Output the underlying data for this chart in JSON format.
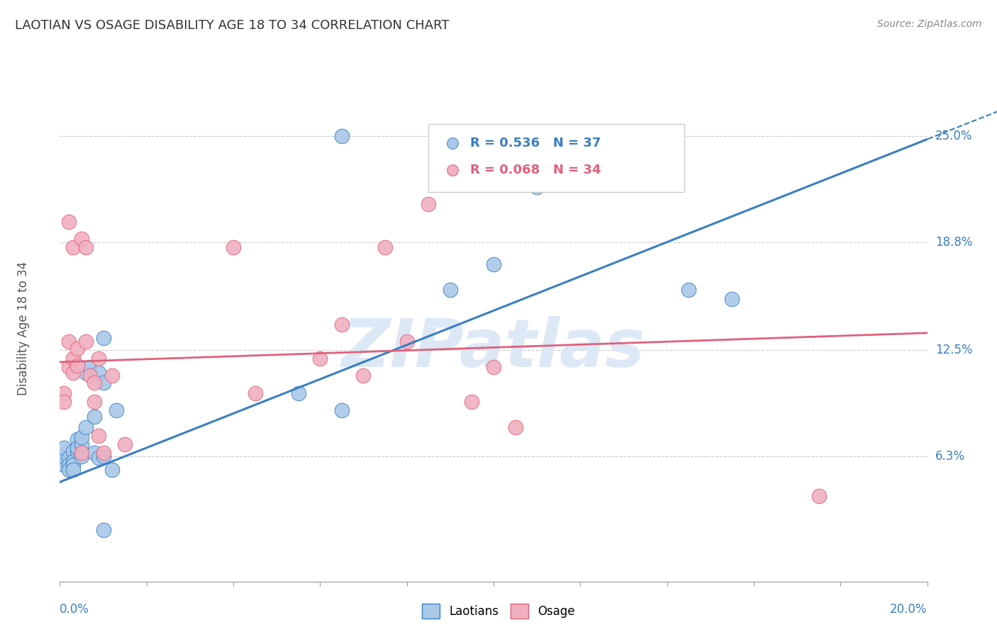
{
  "title": "LAOTIAN VS OSAGE DISABILITY AGE 18 TO 34 CORRELATION CHART",
  "source": "Source: ZipAtlas.com",
  "ylabel": "Disability Age 18 to 34",
  "xlim": [
    0.0,
    0.2
  ],
  "ylim": [
    -0.01,
    0.285
  ],
  "yticks": [
    0.063,
    0.125,
    0.188,
    0.25
  ],
  "ytick_labels": [
    "6.3%",
    "12.5%",
    "18.8%",
    "25.0%"
  ],
  "legend_blue_r": "R = 0.536",
  "legend_blue_n": "N = 37",
  "legend_pink_r": "R = 0.068",
  "legend_pink_n": "N = 34",
  "blue_color": "#aac8e8",
  "pink_color": "#f0b0c0",
  "blue_line_color": "#3a7fc1",
  "pink_line_color": "#e0607a",
  "watermark": "ZIPatlas",
  "watermark_color": "#dce8f5",
  "blue_line_x0": 0.0,
  "blue_line_y0": 0.048,
  "blue_line_x1": 0.2,
  "blue_line_y1": 0.248,
  "pink_line_x0": 0.0,
  "pink_line_y0": 0.118,
  "pink_line_x1": 0.2,
  "pink_line_y1": 0.135,
  "blue_x": [
    0.001,
    0.001,
    0.001,
    0.002,
    0.002,
    0.002,
    0.003,
    0.003,
    0.003,
    0.003,
    0.004,
    0.004,
    0.004,
    0.005,
    0.005,
    0.005,
    0.006,
    0.006,
    0.007,
    0.008,
    0.008,
    0.009,
    0.009,
    0.01,
    0.01,
    0.01,
    0.01,
    0.012,
    0.013,
    0.055,
    0.065,
    0.065,
    0.09,
    0.1,
    0.11,
    0.145,
    0.155
  ],
  "blue_y": [
    0.058,
    0.063,
    0.068,
    0.062,
    0.058,
    0.055,
    0.066,
    0.06,
    0.058,
    0.055,
    0.066,
    0.073,
    0.068,
    0.07,
    0.074,
    0.063,
    0.08,
    0.112,
    0.115,
    0.086,
    0.065,
    0.062,
    0.112,
    0.132,
    0.106,
    0.063,
    0.02,
    0.055,
    0.09,
    0.1,
    0.09,
    0.25,
    0.16,
    0.175,
    0.22,
    0.16,
    0.155
  ],
  "pink_x": [
    0.001,
    0.001,
    0.002,
    0.002,
    0.002,
    0.003,
    0.003,
    0.003,
    0.004,
    0.004,
    0.005,
    0.005,
    0.006,
    0.006,
    0.007,
    0.008,
    0.008,
    0.009,
    0.009,
    0.01,
    0.012,
    0.015,
    0.04,
    0.045,
    0.06,
    0.065,
    0.07,
    0.075,
    0.08,
    0.085,
    0.095,
    0.1,
    0.105,
    0.175
  ],
  "pink_y": [
    0.1,
    0.095,
    0.115,
    0.13,
    0.2,
    0.185,
    0.12,
    0.112,
    0.116,
    0.126,
    0.065,
    0.19,
    0.185,
    0.13,
    0.11,
    0.106,
    0.095,
    0.075,
    0.12,
    0.065,
    0.11,
    0.07,
    0.185,
    0.1,
    0.12,
    0.14,
    0.11,
    0.185,
    0.13,
    0.21,
    0.095,
    0.115,
    0.08,
    0.04
  ]
}
